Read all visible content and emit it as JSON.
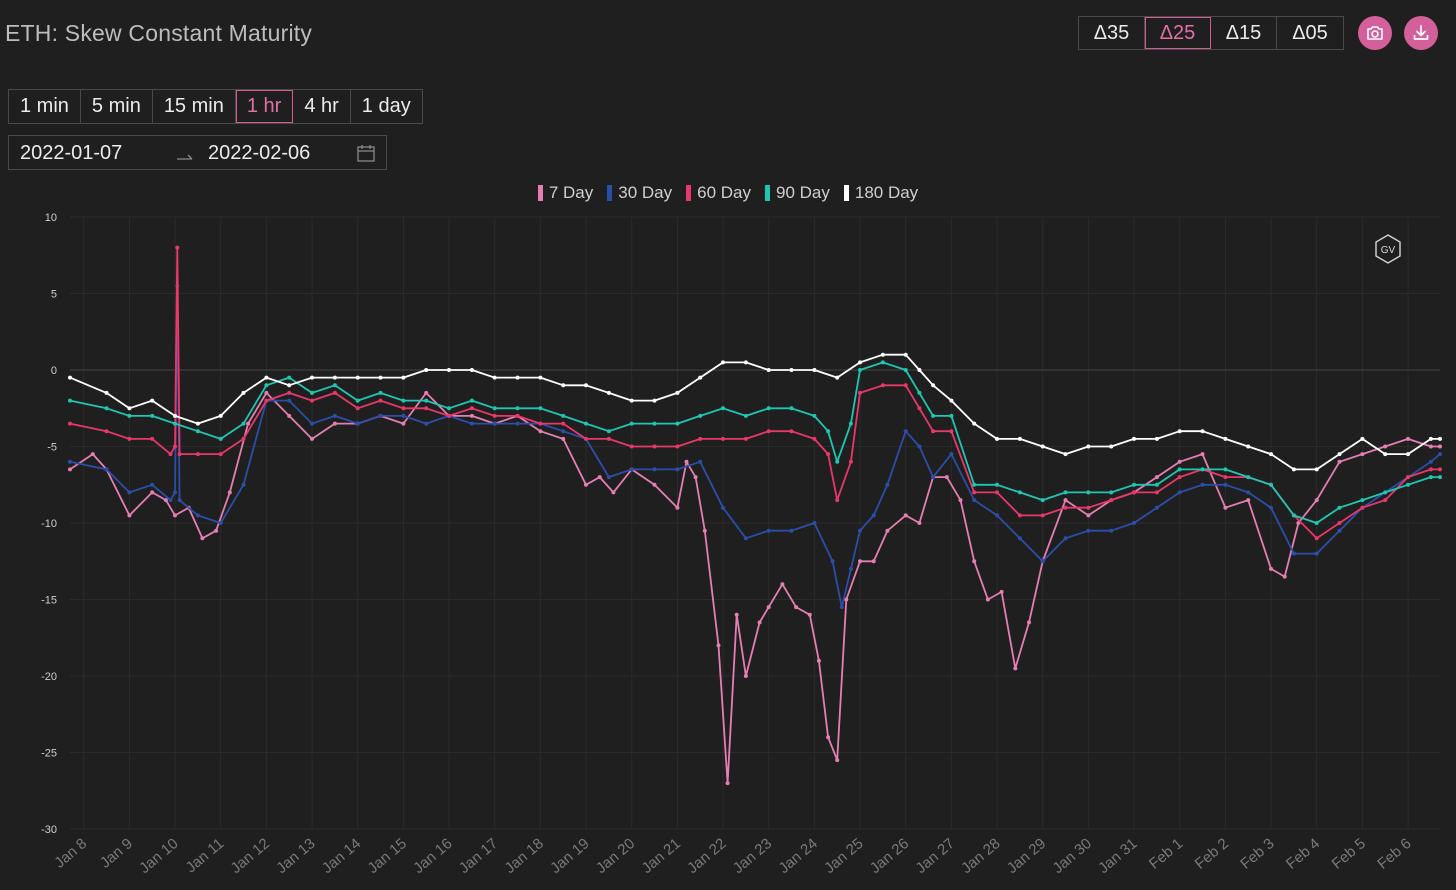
{
  "title": "ETH: Skew Constant Maturity",
  "delta_buttons": [
    {
      "label": "Δ35",
      "active": false
    },
    {
      "label": "Δ25",
      "active": true
    },
    {
      "label": "Δ15",
      "active": false
    },
    {
      "label": "Δ05",
      "active": false
    }
  ],
  "icons": {
    "camera": "camera-icon",
    "download": "download-icon",
    "calendar": "calendar-icon",
    "watermark": "gv-logo"
  },
  "interval_buttons": [
    {
      "label": "1 min",
      "active": false
    },
    {
      "label": "5 min",
      "active": false
    },
    {
      "label": "15 min",
      "active": false
    },
    {
      "label": "1 hr",
      "active": true
    },
    {
      "label": "4 hr",
      "active": false
    },
    {
      "label": "1 day",
      "active": false
    }
  ],
  "date_range": {
    "start": "2022-01-07",
    "end": "2022-02-06"
  },
  "colors": {
    "background": "#1f1f1f",
    "accent": "#d4609b",
    "7 Day": "#e57fb3",
    "30 Day": "#2b4ea8",
    "60 Day": "#e8386a",
    "90 Day": "#1fc7b3",
    "180 Day": "#ffffff"
  },
  "chart_data": {
    "type": "line",
    "title": "",
    "xlabel": "",
    "ylabel": "",
    "ylim": [
      -30,
      10
    ],
    "yticks": [
      10,
      5,
      0,
      -5,
      -10,
      -15,
      -20,
      -25,
      -30
    ],
    "xticks": [
      "Jan 8",
      "Jan 9",
      "Jan 10",
      "Jan 11",
      "Jan 12",
      "Jan 13",
      "Jan 14",
      "Jan 15",
      "Jan 16",
      "Jan 17",
      "Jan 18",
      "Jan 19",
      "Jan 20",
      "Jan 21",
      "Jan 22",
      "Jan 23",
      "Jan 24",
      "Jan 25",
      "Jan 26",
      "Jan 27",
      "Jan 28",
      "Jan 29",
      "Jan 30",
      "Jan 31",
      "Feb 1",
      "Feb 2",
      "Feb 3",
      "Feb 4",
      "Feb 5",
      "Feb 6"
    ],
    "xlim": [
      -0.3,
      29.7
    ],
    "grid": true,
    "legend_position": "top-center",
    "series": [
      {
        "name": "7 Day",
        "color": "#e57fb3",
        "x": [
          -0.3,
          0.2,
          0.5,
          1.0,
          1.5,
          1.8,
          2.0,
          2.3,
          2.6,
          2.9,
          3.2,
          3.6,
          4.0,
          4.5,
          5.0,
          5.5,
          6.0,
          6.5,
          7.0,
          7.5,
          8.0,
          8.5,
          9.0,
          9.5,
          10.0,
          10.5,
          11.0,
          11.3,
          11.6,
          12.0,
          12.5,
          13.0,
          13.2,
          13.4,
          13.6,
          13.9,
          14.1,
          14.3,
          14.5,
          14.8,
          15.0,
          15.3,
          15.6,
          15.9,
          16.1,
          16.3,
          16.5,
          16.7,
          17.0,
          17.3,
          17.6,
          18.0,
          18.3,
          18.6,
          18.9,
          19.2,
          19.5,
          19.8,
          20.1,
          20.4,
          20.7,
          21.0,
          21.5,
          22.0,
          22.5,
          23.0,
          23.5,
          24.0,
          24.5,
          25.0,
          25.5,
          26.0,
          26.3,
          26.6,
          27.0,
          27.5,
          28.0,
          28.5,
          29.0,
          29.5,
          29.7
        ],
        "y": [
          -6.5,
          -5.5,
          -6.5,
          -9.5,
          -8.0,
          -8.5,
          -9.5,
          -9.0,
          -11.0,
          -10.5,
          -8.0,
          -3.5,
          -1.5,
          -3.0,
          -4.5,
          -3.5,
          -3.5,
          -3.0,
          -3.5,
          -1.5,
          -3.0,
          -3.0,
          -3.5,
          -3.0,
          -4.0,
          -4.5,
          -7.5,
          -7.0,
          -8.0,
          -6.5,
          -7.5,
          -9.0,
          -6.0,
          -7.0,
          -10.5,
          -18.0,
          -27.0,
          -16.0,
          -20.0,
          -16.5,
          -15.5,
          -14.0,
          -15.5,
          -16.0,
          -19.0,
          -24.0,
          -25.5,
          -15.0,
          -12.5,
          -12.5,
          -10.5,
          -9.5,
          -10.0,
          -7.0,
          -7.0,
          -8.5,
          -12.5,
          -15.0,
          -14.5,
          -19.5,
          -16.5,
          -12.5,
          -8.5,
          -9.5,
          -8.5,
          -8.0,
          -7.0,
          -6.0,
          -5.5,
          -9.0,
          -8.5,
          -13.0,
          -13.5,
          -10.0,
          -8.5,
          -6.0,
          -5.5,
          -5.0,
          -4.5,
          -5.0,
          -5.0
        ]
      },
      {
        "name": "30 Day",
        "color": "#2b4ea8",
        "x": [
          -0.3,
          0.5,
          1.0,
          1.5,
          1.9,
          2.0,
          2.05,
          2.1,
          2.5,
          3.0,
          3.5,
          4.0,
          4.5,
          5.0,
          5.5,
          6.0,
          6.5,
          7.0,
          7.5,
          8.0,
          8.5,
          9.0,
          9.5,
          10.0,
          10.5,
          11.0,
          11.5,
          12.0,
          12.5,
          13.0,
          13.5,
          14.0,
          14.5,
          15.0,
          15.5,
          16.0,
          16.4,
          16.6,
          16.8,
          17.0,
          17.3,
          17.6,
          18.0,
          18.3,
          18.6,
          19.0,
          19.5,
          20.0,
          20.5,
          21.0,
          21.5,
          22.0,
          22.5,
          23.0,
          23.5,
          24.0,
          24.5,
          25.0,
          25.5,
          26.0,
          26.5,
          27.0,
          27.5,
          28.0,
          28.5,
          29.0,
          29.5,
          29.7
        ],
        "y": [
          -6.0,
          -6.5,
          -8.0,
          -7.5,
          -8.5,
          -8.0,
          5.5,
          -8.5,
          -9.5,
          -10.0,
          -7.5,
          -2.0,
          -2.0,
          -3.5,
          -3.0,
          -3.5,
          -3.0,
          -3.0,
          -3.5,
          -3.0,
          -3.5,
          -3.5,
          -3.5,
          -3.5,
          -4.0,
          -4.5,
          -7.0,
          -6.5,
          -6.5,
          -6.5,
          -6.0,
          -9.0,
          -11.0,
          -10.5,
          -10.5,
          -10.0,
          -12.5,
          -15.5,
          -13.0,
          -10.5,
          -9.5,
          -7.5,
          -4.0,
          -5.0,
          -7.0,
          -5.5,
          -8.5,
          -9.5,
          -11.0,
          -12.5,
          -11.0,
          -10.5,
          -10.5,
          -10.0,
          -9.0,
          -8.0,
          -7.5,
          -7.5,
          -8.0,
          -9.0,
          -12.0,
          -12.0,
          -10.5,
          -9.0,
          -8.0,
          -7.0,
          -6.0,
          -5.5
        ]
      },
      {
        "name": "60 Day",
        "color": "#e8386a",
        "x": [
          -0.3,
          0.5,
          1.0,
          1.5,
          1.9,
          2.0,
          2.05,
          2.1,
          2.5,
          3.0,
          3.5,
          4.0,
          4.5,
          5.0,
          5.5,
          6.0,
          6.5,
          7.0,
          7.5,
          8.0,
          8.5,
          9.0,
          9.5,
          10.0,
          10.5,
          11.0,
          11.5,
          12.0,
          12.5,
          13.0,
          13.5,
          14.0,
          14.5,
          15.0,
          15.5,
          16.0,
          16.3,
          16.5,
          16.8,
          17.0,
          17.5,
          18.0,
          18.3,
          18.6,
          19.0,
          19.5,
          20.0,
          20.5,
          21.0,
          21.5,
          22.0,
          22.5,
          23.0,
          23.5,
          24.0,
          24.5,
          25.0,
          25.5,
          26.0,
          26.5,
          27.0,
          27.5,
          28.0,
          28.5,
          29.0,
          29.5,
          29.7
        ],
        "y": [
          -3.5,
          -4.0,
          -4.5,
          -4.5,
          -5.5,
          -5.0,
          8.0,
          -5.5,
          -5.5,
          -5.5,
          -4.5,
          -2.0,
          -1.5,
          -2.0,
          -1.5,
          -2.5,
          -2.0,
          -2.5,
          -2.5,
          -3.0,
          -2.5,
          -3.0,
          -3.0,
          -3.5,
          -3.5,
          -4.5,
          -4.5,
          -5.0,
          -5.0,
          -5.0,
          -4.5,
          -4.5,
          -4.5,
          -4.0,
          -4.0,
          -4.5,
          -5.5,
          -8.5,
          -6.0,
          -1.5,
          -1.0,
          -1.0,
          -2.5,
          -4.0,
          -4.0,
          -8.0,
          -8.0,
          -9.5,
          -9.5,
          -9.0,
          -9.0,
          -8.5,
          -8.0,
          -8.0,
          -7.0,
          -6.5,
          -7.0,
          -7.0,
          -7.5,
          -9.5,
          -11.0,
          -10.0,
          -9.0,
          -8.5,
          -7.0,
          -6.5,
          -6.5
        ]
      },
      {
        "name": "90 Day",
        "color": "#1fc7b3",
        "x": [
          -0.3,
          0.5,
          1.0,
          1.5,
          2.0,
          2.5,
          3.0,
          3.5,
          4.0,
          4.5,
          5.0,
          5.5,
          6.0,
          6.5,
          7.0,
          7.5,
          8.0,
          8.5,
          9.0,
          9.5,
          10.0,
          10.5,
          11.0,
          11.5,
          12.0,
          12.5,
          13.0,
          13.5,
          14.0,
          14.5,
          15.0,
          15.5,
          16.0,
          16.3,
          16.5,
          16.8,
          17.0,
          17.5,
          18.0,
          18.3,
          18.6,
          19.0,
          19.5,
          20.0,
          20.5,
          21.0,
          21.5,
          22.0,
          22.5,
          23.0,
          23.5,
          24.0,
          24.5,
          25.0,
          25.5,
          26.0,
          26.5,
          27.0,
          27.5,
          28.0,
          28.5,
          29.0,
          29.5,
          29.7
        ],
        "y": [
          -2.0,
          -2.5,
          -3.0,
          -3.0,
          -3.5,
          -4.0,
          -4.5,
          -3.5,
          -1.0,
          -0.5,
          -1.5,
          -1.0,
          -2.0,
          -1.5,
          -2.0,
          -2.0,
          -2.5,
          -2.0,
          -2.5,
          -2.5,
          -2.5,
          -3.0,
          -3.5,
          -4.0,
          -3.5,
          -3.5,
          -3.5,
          -3.0,
          -2.5,
          -3.0,
          -2.5,
          -2.5,
          -3.0,
          -4.0,
          -6.0,
          -3.5,
          0.0,
          0.5,
          0.0,
          -1.5,
          -3.0,
          -3.0,
          -7.5,
          -7.5,
          -8.0,
          -8.5,
          -8.0,
          -8.0,
          -8.0,
          -7.5,
          -7.5,
          -6.5,
          -6.5,
          -6.5,
          -7.0,
          -7.5,
          -9.5,
          -10.0,
          -9.0,
          -8.5,
          -8.0,
          -7.5,
          -7.0,
          -7.0
        ]
      },
      {
        "name": "180 Day",
        "color": "#ffffff",
        "x": [
          -0.3,
          0.5,
          1.0,
          1.5,
          2.0,
          2.5,
          3.0,
          3.5,
          4.0,
          4.5,
          5.0,
          5.5,
          6.0,
          6.5,
          7.0,
          7.5,
          8.0,
          8.5,
          9.0,
          9.5,
          10.0,
          10.5,
          11.0,
          11.5,
          12.0,
          12.5,
          13.0,
          13.5,
          14.0,
          14.5,
          15.0,
          15.5,
          16.0,
          16.5,
          17.0,
          17.5,
          18.0,
          18.3,
          18.6,
          19.0,
          19.5,
          20.0,
          20.5,
          21.0,
          21.5,
          22.0,
          22.5,
          23.0,
          23.5,
          24.0,
          24.5,
          25.0,
          25.5,
          26.0,
          26.5,
          27.0,
          27.5,
          28.0,
          28.5,
          29.0,
          29.5,
          29.7
        ],
        "y": [
          -0.5,
          -1.5,
          -2.5,
          -2.0,
          -3.0,
          -3.5,
          -3.0,
          -1.5,
          -0.5,
          -1.0,
          -0.5,
          -0.5,
          -0.5,
          -0.5,
          -0.5,
          0.0,
          0.0,
          0.0,
          -0.5,
          -0.5,
          -0.5,
          -1.0,
          -1.0,
          -1.5,
          -2.0,
          -2.0,
          -1.5,
          -0.5,
          0.5,
          0.5,
          0.0,
          0.0,
          0.0,
          -0.5,
          0.5,
          1.0,
          1.0,
          0.0,
          -1.0,
          -2.0,
          -3.5,
          -4.5,
          -4.5,
          -5.0,
          -5.5,
          -5.0,
          -5.0,
          -4.5,
          -4.5,
          -4.0,
          -4.0,
          -4.5,
          -5.0,
          -5.5,
          -6.5,
          -6.5,
          -5.5,
          -4.5,
          -5.5,
          -5.5,
          -4.5,
          -4.5
        ]
      }
    ]
  }
}
